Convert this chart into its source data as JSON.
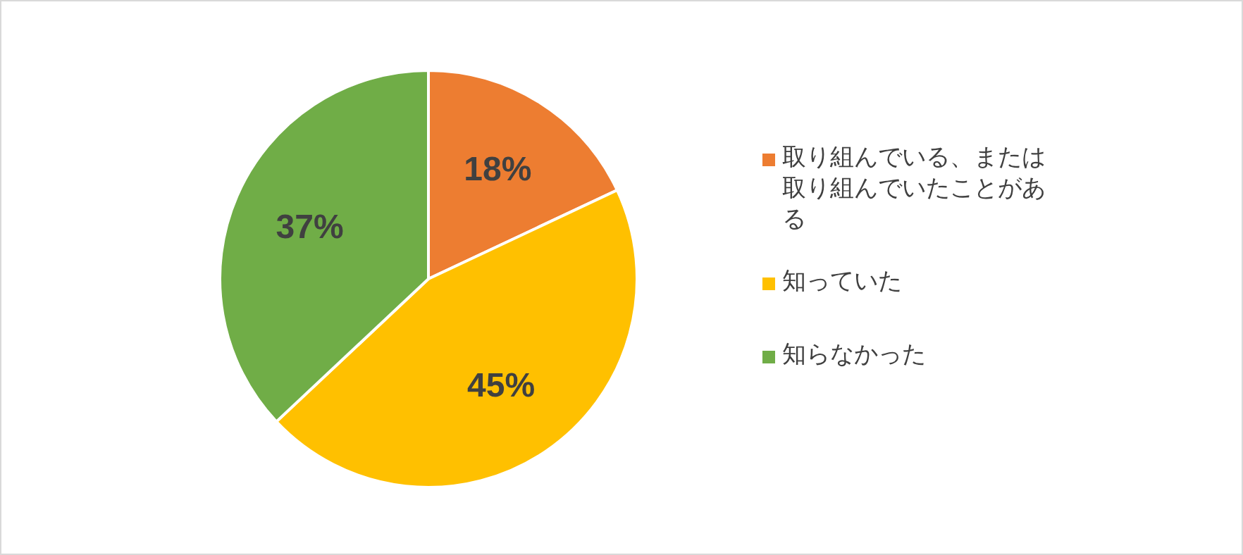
{
  "chart_data": {
    "type": "pie",
    "categories": [
      "取り組んでいる、または取り組んでいたことがある",
      "知っていた",
      "知らなかった"
    ],
    "values": [
      18,
      45,
      37
    ],
    "value_labels": [
      "18%",
      "45%",
      "37%"
    ],
    "colors": [
      "#ed7d31",
      "#ffc000",
      "#70ad47"
    ],
    "legend": "right"
  }
}
